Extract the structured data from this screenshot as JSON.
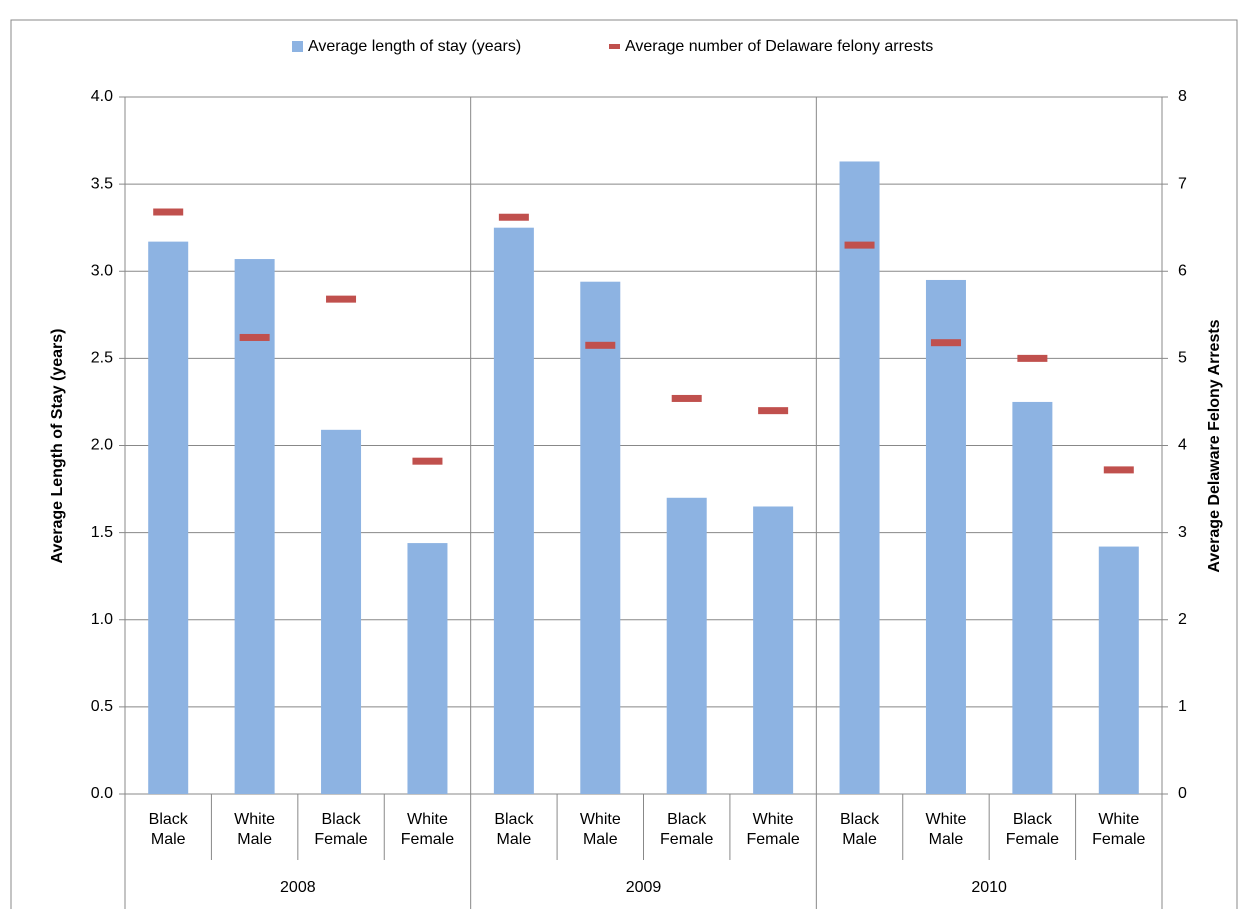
{
  "chart_data": {
    "type": "bar",
    "groups": [
      "2008",
      "2009",
      "2010"
    ],
    "categories": [
      "Black Male",
      "White Male",
      "Black Female",
      "White Female",
      "Black Male",
      "White Male",
      "Black Female",
      "White Female",
      "Black Male",
      "White Male",
      "Black Female",
      "White Female"
    ],
    "y_label": "Average Length of Stay (years)",
    "y2_label": "Average Delaware Felony Arrests",
    "series": [
      {
        "name": "Average length of stay (years)",
        "color": "#8db3e2",
        "type": "bar",
        "values": [
          3.17,
          3.07,
          2.09,
          1.44,
          3.25,
          2.94,
          1.7,
          1.65,
          3.63,
          2.95,
          2.25,
          1.42
        ]
      },
      {
        "name": "Average number of Delaware felony arrests",
        "color": "#c0504d",
        "type": "dash",
        "axis": "y2",
        "values": [
          6.68,
          5.24,
          5.68,
          3.82,
          6.62,
          5.15,
          4.54,
          4.4,
          6.3,
          5.18,
          5.0,
          3.72
        ]
      }
    ],
    "ylim": [
      0,
      4
    ],
    "yticks": [
      {
        "value": 0,
        "label": "0.0"
      },
      0.5,
      {
        "value": 1,
        "label": "1.0"
      },
      1.5,
      {
        "value": 2,
        "label": "2.0"
      },
      2.5,
      {
        "value": 3,
        "label": "3.0"
      },
      3.5,
      {
        "value": 4,
        "label": "4.0"
      }
    ],
    "y2lim": [
      0,
      8
    ],
    "y2ticks": [
      0,
      1,
      2,
      3,
      4,
      5,
      6,
      7,
      8
    ],
    "grid": true,
    "legend": "top"
  }
}
